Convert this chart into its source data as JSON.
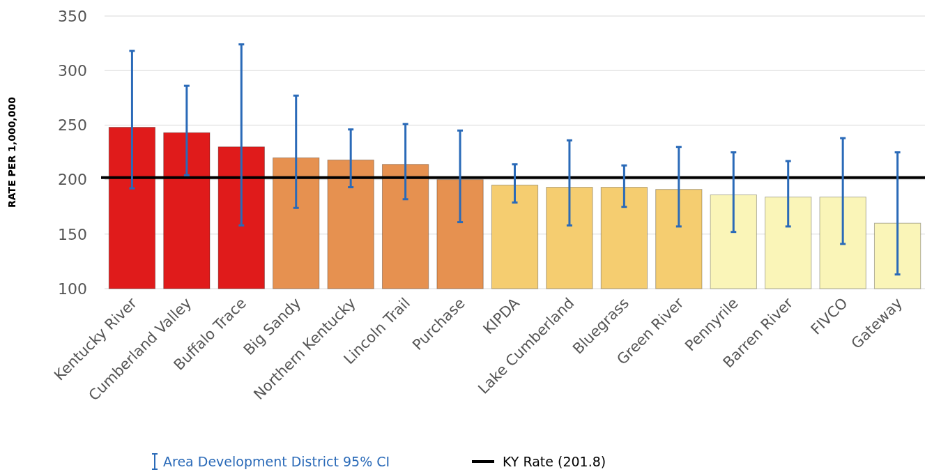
{
  "chart_data": {
    "type": "bar",
    "ylabel": "RATE  PER 1,000,000",
    "categories": [
      "Kentucky River",
      "Cumberland Valley",
      "Buffalo Trace",
      "Big Sandy",
      "Northern Kentucky",
      "Lincoln Trail",
      "Purchase",
      "KIPDA",
      "Lake Cumberland",
      "Bluegrass",
      "Green River",
      "Pennyrile",
      "Barren River",
      "FIVCO",
      "Gateway"
    ],
    "annotations": [
      "Area Development District 95% CI"
    ],
    "series": [
      {
        "color": "#2a6ab8",
        "colors": [
          "#e01b1b",
          "#e01b1b",
          "#e01b1b",
          "#e69150",
          "#e69150",
          "#e69150",
          "#e69150",
          "#f5cd70",
          "#f5cd70",
          "#f5cd70",
          "#f5cd70",
          "#faf5b8",
          "#faf5b8",
          "#faf5b8",
          "#faf5b8"
        ],
        "values": [
          248,
          243,
          230,
          220,
          218,
          214,
          200,
          195,
          193,
          193,
          191,
          186,
          184,
          184,
          160
        ],
        "errors": [
          [
            192,
            318
          ],
          [
            204,
            286
          ],
          [
            158,
            324
          ],
          [
            174,
            277
          ],
          [
            193,
            246
          ],
          [
            182,
            251
          ],
          [
            161,
            245
          ],
          [
            179,
            214
          ],
          [
            158,
            236
          ],
          [
            175,
            213
          ],
          [
            157,
            230
          ],
          [
            152,
            225
          ],
          [
            157,
            217
          ],
          [
            141,
            238
          ],
          [
            113,
            225
          ]
        ]
      }
    ],
    "ylim": [
      100,
      350
    ],
    "yticks": [
      100,
      150,
      200,
      250,
      300,
      350
    ],
    "grid": "y",
    "ref_lines": [
      {
        "axis": "y",
        "value": 201.8,
        "label": "KY Rate (201.8)",
        "color": "#000000"
      }
    ],
    "legend": "bottom"
  }
}
